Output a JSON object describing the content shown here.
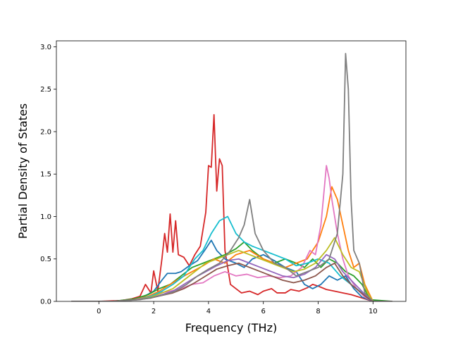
{
  "chart_data": {
    "type": "line",
    "title": "",
    "xlabel": "Frequency (THz)",
    "ylabel": "Partial Density of States",
    "xlim": [
      -1.55,
      11.2
    ],
    "ylim": [
      0,
      3.07
    ],
    "xticks": [
      0,
      2,
      4,
      6,
      8,
      10
    ],
    "yticks": [
      0.0,
      0.5,
      1.0,
      1.5,
      2.0,
      2.5,
      3.0
    ],
    "grid": false,
    "legend": "none",
    "series": [
      {
        "color": "#d62728",
        "points": [
          [
            -1.0,
            0
          ],
          [
            0.0,
            0
          ],
          [
            0.8,
            0.01
          ],
          [
            1.2,
            0.03
          ],
          [
            1.5,
            0.06
          ],
          [
            1.7,
            0.2
          ],
          [
            1.9,
            0.1
          ],
          [
            2.0,
            0.36
          ],
          [
            2.15,
            0.12
          ],
          [
            2.3,
            0.5
          ],
          [
            2.4,
            0.8
          ],
          [
            2.5,
            0.58
          ],
          [
            2.6,
            1.03
          ],
          [
            2.7,
            0.58
          ],
          [
            2.8,
            0.95
          ],
          [
            2.9,
            0.55
          ],
          [
            3.1,
            0.52
          ],
          [
            3.3,
            0.42
          ],
          [
            3.5,
            0.55
          ],
          [
            3.7,
            0.65
          ],
          [
            3.9,
            1.05
          ],
          [
            4.0,
            1.6
          ],
          [
            4.1,
            1.58
          ],
          [
            4.2,
            2.2
          ],
          [
            4.3,
            1.3
          ],
          [
            4.4,
            1.68
          ],
          [
            4.5,
            1.6
          ],
          [
            4.6,
            0.6
          ],
          [
            4.8,
            0.2
          ],
          [
            5.0,
            0.15
          ],
          [
            5.2,
            0.1
          ],
          [
            5.5,
            0.12
          ],
          [
            5.8,
            0.08
          ],
          [
            6.0,
            0.12
          ],
          [
            6.3,
            0.15
          ],
          [
            6.5,
            0.1
          ],
          [
            6.8,
            0.1
          ],
          [
            7.0,
            0.14
          ],
          [
            7.3,
            0.12
          ],
          [
            7.6,
            0.16
          ],
          [
            7.8,
            0.2
          ],
          [
            8.0,
            0.18
          ],
          [
            8.3,
            0.14
          ],
          [
            8.6,
            0.12
          ],
          [
            8.9,
            0.1
          ],
          [
            9.2,
            0.08
          ],
          [
            9.6,
            0.04
          ],
          [
            10.0,
            0
          ],
          [
            10.7,
            0
          ]
        ]
      },
      {
        "color": "#1f77b4",
        "points": [
          [
            -1.0,
            0
          ],
          [
            0.5,
            0
          ],
          [
            1.2,
            0.02
          ],
          [
            1.6,
            0.05
          ],
          [
            2.0,
            0.12
          ],
          [
            2.3,
            0.25
          ],
          [
            2.5,
            0.33
          ],
          [
            2.8,
            0.33
          ],
          [
            3.0,
            0.35
          ],
          [
            3.3,
            0.42
          ],
          [
            3.6,
            0.48
          ],
          [
            3.9,
            0.62
          ],
          [
            4.1,
            0.72
          ],
          [
            4.3,
            0.6
          ],
          [
            4.6,
            0.5
          ],
          [
            5.0,
            0.45
          ],
          [
            5.3,
            0.4
          ],
          [
            5.6,
            0.5
          ],
          [
            6.0,
            0.55
          ],
          [
            6.4,
            0.48
          ],
          [
            6.8,
            0.4
          ],
          [
            7.2,
            0.35
          ],
          [
            7.5,
            0.2
          ],
          [
            7.8,
            0.15
          ],
          [
            8.1,
            0.2
          ],
          [
            8.4,
            0.3
          ],
          [
            8.7,
            0.25
          ],
          [
            9.0,
            0.3
          ],
          [
            9.3,
            0.15
          ],
          [
            9.6,
            0.05
          ],
          [
            10.0,
            0
          ],
          [
            10.7,
            0
          ]
        ]
      },
      {
        "color": "#2ca02c",
        "points": [
          [
            -1.0,
            0
          ],
          [
            0.5,
            0
          ],
          [
            1.3,
            0.03
          ],
          [
            1.8,
            0.08
          ],
          [
            2.2,
            0.15
          ],
          [
            2.6,
            0.2
          ],
          [
            3.0,
            0.3
          ],
          [
            3.4,
            0.4
          ],
          [
            3.8,
            0.45
          ],
          [
            4.2,
            0.5
          ],
          [
            4.6,
            0.55
          ],
          [
            5.0,
            0.62
          ],
          [
            5.3,
            0.7
          ],
          [
            5.6,
            0.6
          ],
          [
            6.0,
            0.5
          ],
          [
            6.4,
            0.45
          ],
          [
            6.8,
            0.5
          ],
          [
            7.2,
            0.45
          ],
          [
            7.5,
            0.4
          ],
          [
            7.8,
            0.5
          ],
          [
            8.1,
            0.4
          ],
          [
            8.4,
            0.5
          ],
          [
            8.7,
            0.45
          ],
          [
            9.0,
            0.35
          ],
          [
            9.3,
            0.3
          ],
          [
            9.6,
            0.2
          ],
          [
            9.9,
            0.02
          ],
          [
            10.7,
            0
          ]
        ]
      },
      {
        "color": "#ff7f0e",
        "points": [
          [
            -1.0,
            0
          ],
          [
            0.5,
            0
          ],
          [
            1.3,
            0.02
          ],
          [
            1.8,
            0.06
          ],
          [
            2.2,
            0.12
          ],
          [
            2.6,
            0.2
          ],
          [
            3.0,
            0.28
          ],
          [
            3.4,
            0.35
          ],
          [
            3.8,
            0.42
          ],
          [
            4.2,
            0.5
          ],
          [
            4.6,
            0.45
          ],
          [
            5.0,
            0.55
          ],
          [
            5.5,
            0.6
          ],
          [
            6.0,
            0.5
          ],
          [
            6.4,
            0.45
          ],
          [
            6.8,
            0.4
          ],
          [
            7.2,
            0.45
          ],
          [
            7.6,
            0.5
          ],
          [
            8.0,
            0.7
          ],
          [
            8.3,
            1.0
          ],
          [
            8.5,
            1.35
          ],
          [
            8.7,
            1.2
          ],
          [
            8.9,
            0.9
          ],
          [
            9.1,
            0.6
          ],
          [
            9.3,
            0.4
          ],
          [
            9.5,
            0.45
          ],
          [
            9.7,
            0.2
          ],
          [
            10.0,
            0
          ],
          [
            10.7,
            0
          ]
        ]
      },
      {
        "color": "#e377c2",
        "points": [
          [
            -1.0,
            0
          ],
          [
            0.5,
            0
          ],
          [
            1.3,
            0.02
          ],
          [
            1.8,
            0.05
          ],
          [
            2.2,
            0.1
          ],
          [
            2.6,
            0.12
          ],
          [
            3.0,
            0.15
          ],
          [
            3.4,
            0.2
          ],
          [
            3.8,
            0.22
          ],
          [
            4.2,
            0.3
          ],
          [
            4.6,
            0.35
          ],
          [
            5.0,
            0.3
          ],
          [
            5.4,
            0.32
          ],
          [
            5.8,
            0.28
          ],
          [
            6.2,
            0.3
          ],
          [
            6.6,
            0.28
          ],
          [
            7.0,
            0.3
          ],
          [
            7.4,
            0.4
          ],
          [
            7.7,
            0.6
          ],
          [
            7.9,
            0.55
          ],
          [
            8.1,
            0.9
          ],
          [
            8.3,
            1.6
          ],
          [
            8.4,
            1.45
          ],
          [
            8.5,
            1.2
          ],
          [
            8.7,
            0.8
          ],
          [
            8.9,
            0.5
          ],
          [
            9.1,
            0.3
          ],
          [
            9.4,
            0.15
          ],
          [
            9.7,
            0.05
          ],
          [
            10.0,
            0
          ],
          [
            10.7,
            0
          ]
        ]
      },
      {
        "color": "#17becf",
        "points": [
          [
            -1.0,
            0
          ],
          [
            0.5,
            0
          ],
          [
            1.4,
            0.02
          ],
          [
            1.9,
            0.06
          ],
          [
            2.3,
            0.12
          ],
          [
            2.7,
            0.2
          ],
          [
            3.1,
            0.3
          ],
          [
            3.5,
            0.5
          ],
          [
            3.8,
            0.6
          ],
          [
            4.1,
            0.8
          ],
          [
            4.4,
            0.95
          ],
          [
            4.7,
            1.0
          ],
          [
            5.0,
            0.8
          ],
          [
            5.3,
            0.7
          ],
          [
            5.6,
            0.65
          ],
          [
            6.0,
            0.6
          ],
          [
            6.4,
            0.55
          ],
          [
            6.8,
            0.5
          ],
          [
            7.2,
            0.42
          ],
          [
            7.6,
            0.45
          ],
          [
            8.0,
            0.5
          ],
          [
            8.4,
            0.45
          ],
          [
            8.8,
            0.3
          ],
          [
            9.2,
            0.2
          ],
          [
            9.6,
            0.1
          ],
          [
            10.0,
            0
          ],
          [
            10.7,
            0
          ]
        ]
      },
      {
        "color": "#bcbd22",
        "points": [
          [
            -1.0,
            0
          ],
          [
            0.5,
            0
          ],
          [
            1.4,
            0.02
          ],
          [
            1.9,
            0.05
          ],
          [
            2.3,
            0.1
          ],
          [
            2.7,
            0.15
          ],
          [
            3.1,
            0.25
          ],
          [
            3.5,
            0.35
          ],
          [
            3.9,
            0.45
          ],
          [
            4.3,
            0.5
          ],
          [
            4.7,
            0.55
          ],
          [
            5.1,
            0.6
          ],
          [
            5.5,
            0.55
          ],
          [
            5.9,
            0.5
          ],
          [
            6.3,
            0.45
          ],
          [
            6.7,
            0.4
          ],
          [
            7.1,
            0.35
          ],
          [
            7.5,
            0.38
          ],
          [
            7.9,
            0.45
          ],
          [
            8.3,
            0.6
          ],
          [
            8.6,
            0.75
          ],
          [
            8.9,
            0.55
          ],
          [
            9.2,
            0.4
          ],
          [
            9.5,
            0.35
          ],
          [
            9.8,
            0.1
          ],
          [
            10.0,
            0
          ],
          [
            10.7,
            0
          ]
        ]
      },
      {
        "color": "#9467bd",
        "points": [
          [
            -1.0,
            0
          ],
          [
            0.5,
            0
          ],
          [
            1.4,
            0.02
          ],
          [
            1.9,
            0.04
          ],
          [
            2.3,
            0.08
          ],
          [
            2.7,
            0.12
          ],
          [
            3.1,
            0.2
          ],
          [
            3.5,
            0.28
          ],
          [
            3.9,
            0.35
          ],
          [
            4.3,
            0.42
          ],
          [
            4.7,
            0.48
          ],
          [
            5.1,
            0.5
          ],
          [
            5.5,
            0.45
          ],
          [
            5.9,
            0.4
          ],
          [
            6.3,
            0.35
          ],
          [
            6.7,
            0.3
          ],
          [
            7.1,
            0.28
          ],
          [
            7.5,
            0.32
          ],
          [
            7.9,
            0.4
          ],
          [
            8.3,
            0.55
          ],
          [
            8.6,
            0.5
          ],
          [
            8.9,
            0.35
          ],
          [
            9.2,
            0.25
          ],
          [
            9.5,
            0.15
          ],
          [
            9.8,
            0.05
          ],
          [
            10.0,
            0
          ],
          [
            10.7,
            0
          ]
        ]
      },
      {
        "color": "#8c564b",
        "points": [
          [
            -1.0,
            0
          ],
          [
            0.5,
            0
          ],
          [
            1.4,
            0.02
          ],
          [
            1.9,
            0.04
          ],
          [
            2.3,
            0.07
          ],
          [
            2.7,
            0.1
          ],
          [
            3.1,
            0.15
          ],
          [
            3.5,
            0.22
          ],
          [
            3.9,
            0.3
          ],
          [
            4.3,
            0.38
          ],
          [
            4.7,
            0.42
          ],
          [
            5.1,
            0.45
          ],
          [
            5.5,
            0.4
          ],
          [
            5.9,
            0.35
          ],
          [
            6.3,
            0.3
          ],
          [
            6.7,
            0.25
          ],
          [
            7.1,
            0.22
          ],
          [
            7.5,
            0.25
          ],
          [
            7.9,
            0.3
          ],
          [
            8.3,
            0.4
          ],
          [
            8.6,
            0.45
          ],
          [
            8.9,
            0.3
          ],
          [
            9.2,
            0.2
          ],
          [
            9.5,
            0.12
          ],
          [
            9.8,
            0.04
          ],
          [
            10.0,
            0
          ],
          [
            10.7,
            0
          ]
        ]
      },
      {
        "color": "#7f7f7f",
        "points": [
          [
            -1.0,
            0
          ],
          [
            0.5,
            0
          ],
          [
            1.5,
            0.02
          ],
          [
            2.0,
            0.05
          ],
          [
            2.4,
            0.08
          ],
          [
            2.8,
            0.12
          ],
          [
            3.2,
            0.2
          ],
          [
            3.6,
            0.3
          ],
          [
            4.0,
            0.38
          ],
          [
            4.4,
            0.45
          ],
          [
            4.8,
            0.6
          ],
          [
            5.1,
            0.75
          ],
          [
            5.3,
            0.9
          ],
          [
            5.5,
            1.2
          ],
          [
            5.7,
            0.8
          ],
          [
            6.0,
            0.6
          ],
          [
            6.4,
            0.45
          ],
          [
            6.8,
            0.4
          ],
          [
            7.2,
            0.3
          ],
          [
            7.6,
            0.35
          ],
          [
            8.0,
            0.4
          ],
          [
            8.4,
            0.5
          ],
          [
            8.7,
            0.8
          ],
          [
            8.9,
            1.5
          ],
          [
            9.0,
            2.92
          ],
          [
            9.1,
            2.5
          ],
          [
            9.2,
            1.2
          ],
          [
            9.3,
            0.6
          ],
          [
            9.5,
            0.45
          ],
          [
            9.7,
            0.1
          ],
          [
            10.0,
            0
          ],
          [
            10.7,
            0
          ]
        ]
      }
    ]
  }
}
